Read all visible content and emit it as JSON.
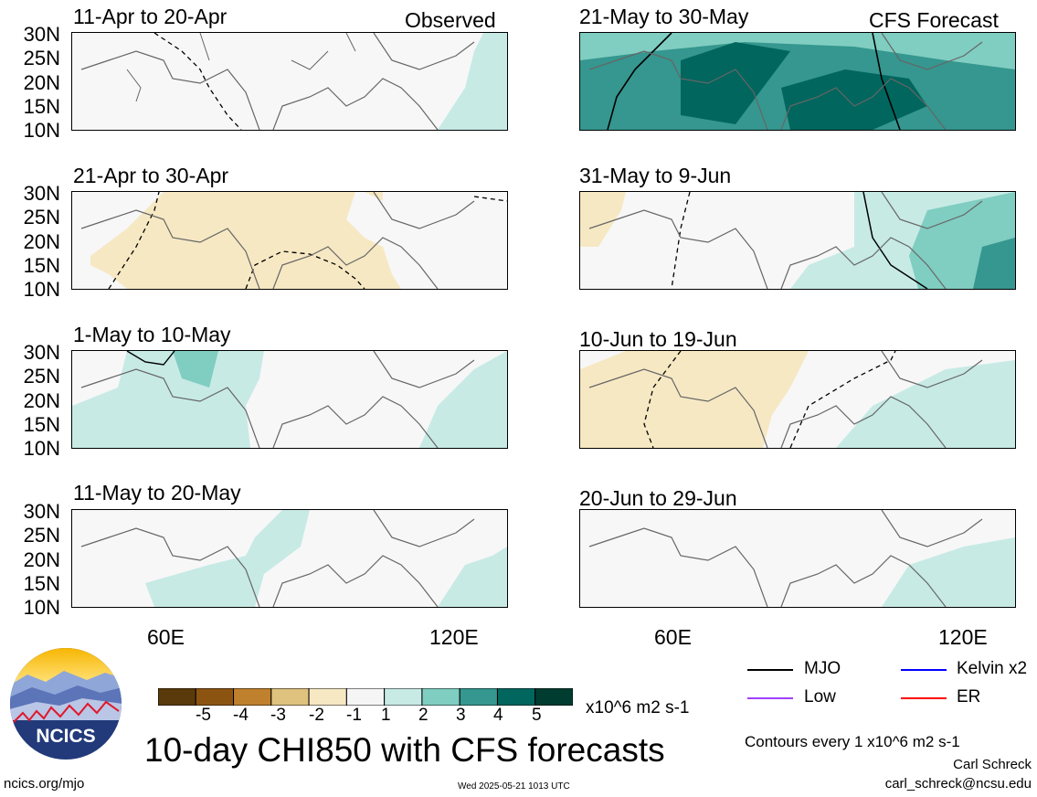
{
  "panels_left_tag": "Observed",
  "panels_right_tag": "CFS Forecast",
  "panels": [
    {
      "title": "11-Apr to 20-Apr",
      "col": 0,
      "row": 0
    },
    {
      "title": "21-Apr to 30-Apr",
      "col": 0,
      "row": 1
    },
    {
      "title": "1-May to 10-May",
      "col": 0,
      "row": 2
    },
    {
      "title": "11-May to 20-May",
      "col": 0,
      "row": 3
    },
    {
      "title": "21-May to 30-May",
      "col": 1,
      "row": 0
    },
    {
      "title": "31-May to 9-Jun",
      "col": 1,
      "row": 1
    },
    {
      "title": "10-Jun to 19-Jun",
      "col": 1,
      "row": 2
    },
    {
      "title": "20-Jun to 29-Jun",
      "col": 1,
      "row": 3
    }
  ],
  "lat_labels": [
    "30N",
    "25N",
    "20N",
    "15N",
    "10N"
  ],
  "lon_labels": [
    "60E",
    "120E"
  ],
  "colorbar": {
    "colors": [
      "#5a3a0a",
      "#8c5411",
      "#bf812d",
      "#dfc27d",
      "#f6e8c3",
      "#f5f5f5",
      "#c7eae5",
      "#80cdc1",
      "#35978f",
      "#01665e",
      "#003c30"
    ],
    "ticks": [
      "-5",
      "-4",
      "-3",
      "-2",
      "-1",
      "1",
      "2",
      "3",
      "4",
      "5"
    ],
    "units": "x10^6 m2 s-1"
  },
  "legend": [
    {
      "label": "MJO",
      "color": "#000000"
    },
    {
      "label": "Kelvin x2",
      "color": "#0000ff"
    },
    {
      "label": "Low",
      "color": "#a040ff"
    },
    {
      "label": "ER",
      "color": "#ff0000"
    }
  ],
  "main_title": "10-day CHI850 with CFS forecasts",
  "logo_text": "NCICS",
  "contours_note": "Contours every 1 x10^6 m2 s-1",
  "author": "Carl Schreck",
  "email": "carl_schreck@ncsu.edu",
  "url": "ncics.org/mjo",
  "timestamp": "Wed 2025-05-21 1013 UTC"
}
